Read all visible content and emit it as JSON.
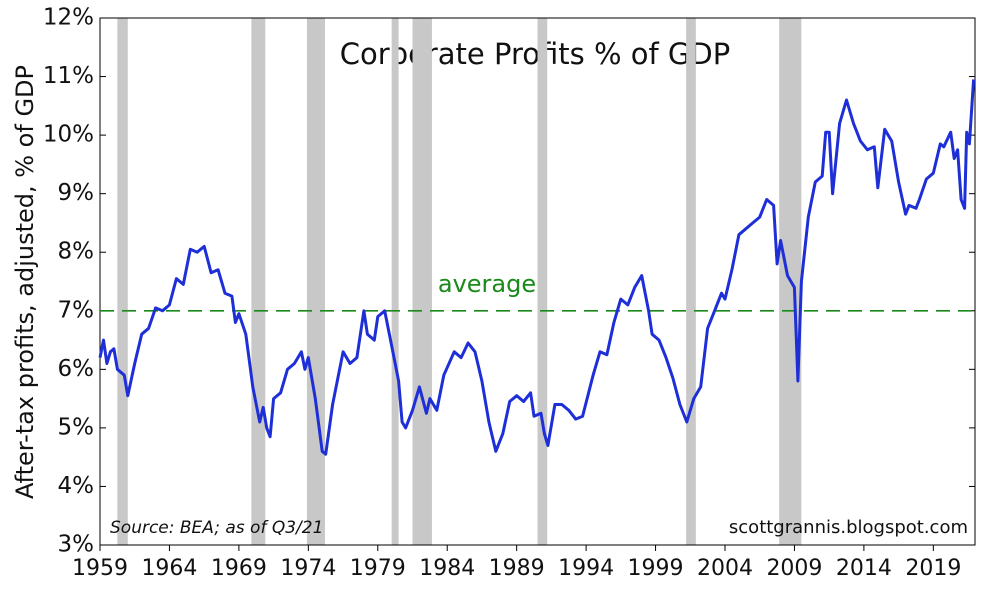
{
  "chart_data": {
    "type": "line",
    "title": "Corporate Profits % of GDP",
    "ylabel": "After-tax profits, adjusted, % of GDP",
    "source": "Source: BEA; as of Q3/21",
    "watermark": "scottgrannis.blogspot.com",
    "average": {
      "label": "average",
      "value": 7,
      "color": "#1a8a1a"
    },
    "recessions": [
      [
        1960.25,
        1961.0
      ],
      [
        1969.9,
        1970.9
      ],
      [
        1973.9,
        1975.2
      ],
      [
        1980.0,
        1980.5
      ],
      [
        1981.5,
        1982.9
      ],
      [
        1990.5,
        1991.2
      ],
      [
        2001.2,
        2001.9
      ],
      [
        2007.9,
        2009.5
      ]
    ],
    "xlim": [
      1959,
      2022
    ],
    "xticks": [
      1959,
      1964,
      1969,
      1974,
      1979,
      1984,
      1989,
      1994,
      1999,
      2004,
      2009,
      2014,
      2019
    ],
    "ylim": [
      3,
      12
    ],
    "yticks": [
      {
        "value": 3,
        "label": "3%"
      },
      {
        "value": 4,
        "label": "4%"
      },
      {
        "value": 5,
        "label": "5%"
      },
      {
        "value": 6,
        "label": "6%"
      },
      {
        "value": 7,
        "label": "7%"
      },
      {
        "value": 8,
        "label": "8%"
      },
      {
        "value": 9,
        "label": "9%"
      },
      {
        "value": 10,
        "label": "10%"
      },
      {
        "value": 11,
        "label": "11%"
      },
      {
        "value": 12,
        "label": "12%"
      }
    ],
    "series": [
      {
        "color": "#1f2fd8",
        "x": [
          1959.0,
          1959.25,
          1959.5,
          1959.75,
          1960.0,
          1960.25,
          1960.75,
          1961.0,
          1961.5,
          1962.0,
          1962.5,
          1963.0,
          1963.5,
          1964.0,
          1964.5,
          1965.0,
          1965.5,
          1966.0,
          1966.5,
          1967.0,
          1967.5,
          1968.0,
          1968.5,
          1968.75,
          1969.0,
          1969.5,
          1970.0,
          1970.5,
          1970.75,
          1971.0,
          1971.25,
          1971.5,
          1972.0,
          1972.5,
          1973.0,
          1973.5,
          1973.75,
          1974.0,
          1974.5,
          1975.0,
          1975.25,
          1975.75,
          1976.5,
          1977.0,
          1977.5,
          1978.0,
          1978.25,
          1978.75,
          1979.0,
          1979.5,
          1980.0,
          1980.5,
          1980.75,
          1981.0,
          1981.5,
          1982.0,
          1982.5,
          1982.75,
          1983.25,
          1983.75,
          1984.5,
          1985.0,
          1985.5,
          1986.0,
          1986.5,
          1987.0,
          1987.5,
          1988.0,
          1988.5,
          1989.0,
          1989.5,
          1990.0,
          1990.25,
          1990.75,
          1991.0,
          1991.25,
          1991.75,
          1992.25,
          1992.75,
          1993.25,
          1993.75,
          1994.5,
          1995.0,
          1995.5,
          1996.0,
          1996.5,
          1997.0,
          1997.5,
          1998.0,
          1998.5,
          1998.75,
          1999.25,
          1999.75,
          2000.25,
          2000.75,
          2001.25,
          2001.75,
          2002.25,
          2002.75,
          2003.25,
          2003.75,
          2004.0,
          2004.5,
          2005.0,
          2005.5,
          2006.0,
          2006.5,
          2007.0,
          2007.5,
          2007.75,
          2008.0,
          2008.5,
          2009.0,
          2009.25,
          2009.5,
          2010.0,
          2010.5,
          2011.0,
          2011.25,
          2011.5,
          2011.75,
          2012.25,
          2012.75,
          2013.25,
          2013.75,
          2014.25,
          2014.75,
          2015.0,
          2015.5,
          2016.0,
          2016.5,
          2017.0,
          2017.25,
          2017.75,
          2018.0,
          2018.5,
          2019.0,
          2019.5,
          2019.75,
          2020.25,
          2020.5,
          2020.75,
          2021.0,
          2021.25,
          2021.4,
          2021.6,
          2021.75,
          2021.9
        ],
        "values": [
          6.2,
          6.5,
          6.1,
          6.3,
          6.35,
          6.0,
          5.9,
          5.55,
          6.1,
          6.6,
          6.7,
          7.05,
          7.0,
          7.1,
          7.55,
          7.45,
          8.05,
          8.0,
          8.1,
          7.65,
          7.7,
          7.3,
          7.25,
          6.8,
          6.95,
          6.6,
          5.7,
          5.1,
          5.35,
          5.0,
          4.85,
          5.5,
          5.6,
          6.0,
          6.1,
          6.3,
          6.0,
          6.2,
          5.5,
          4.6,
          4.55,
          5.4,
          6.3,
          6.1,
          6.2,
          7.0,
          6.6,
          6.5,
          6.9,
          7.0,
          6.4,
          5.8,
          5.1,
          5.0,
          5.3,
          5.7,
          5.25,
          5.5,
          5.3,
          5.9,
          6.3,
          6.2,
          6.45,
          6.3,
          5.8,
          5.1,
          4.6,
          4.9,
          5.45,
          5.55,
          5.45,
          5.6,
          5.2,
          5.25,
          4.9,
          4.7,
          5.4,
          5.4,
          5.3,
          5.15,
          5.2,
          5.9,
          6.3,
          6.25,
          6.8,
          7.2,
          7.1,
          7.4,
          7.6,
          7.0,
          6.6,
          6.5,
          6.2,
          5.85,
          5.4,
          5.1,
          5.5,
          5.7,
          6.7,
          7.0,
          7.3,
          7.2,
          7.7,
          8.3,
          8.4,
          8.5,
          8.6,
          8.9,
          8.8,
          7.8,
          8.2,
          7.6,
          7.4,
          5.8,
          7.5,
          8.6,
          9.2,
          9.3,
          10.05,
          10.05,
          9.0,
          10.2,
          10.6,
          10.2,
          9.9,
          9.75,
          9.8,
          9.1,
          10.1,
          9.9,
          9.2,
          8.65,
          8.8,
          8.75,
          8.9,
          9.25,
          9.35,
          9.85,
          9.8,
          10.05,
          9.6,
          9.75,
          8.9,
          8.75,
          10.05,
          9.85,
          10.4,
          10.95
        ]
      }
    ]
  }
}
